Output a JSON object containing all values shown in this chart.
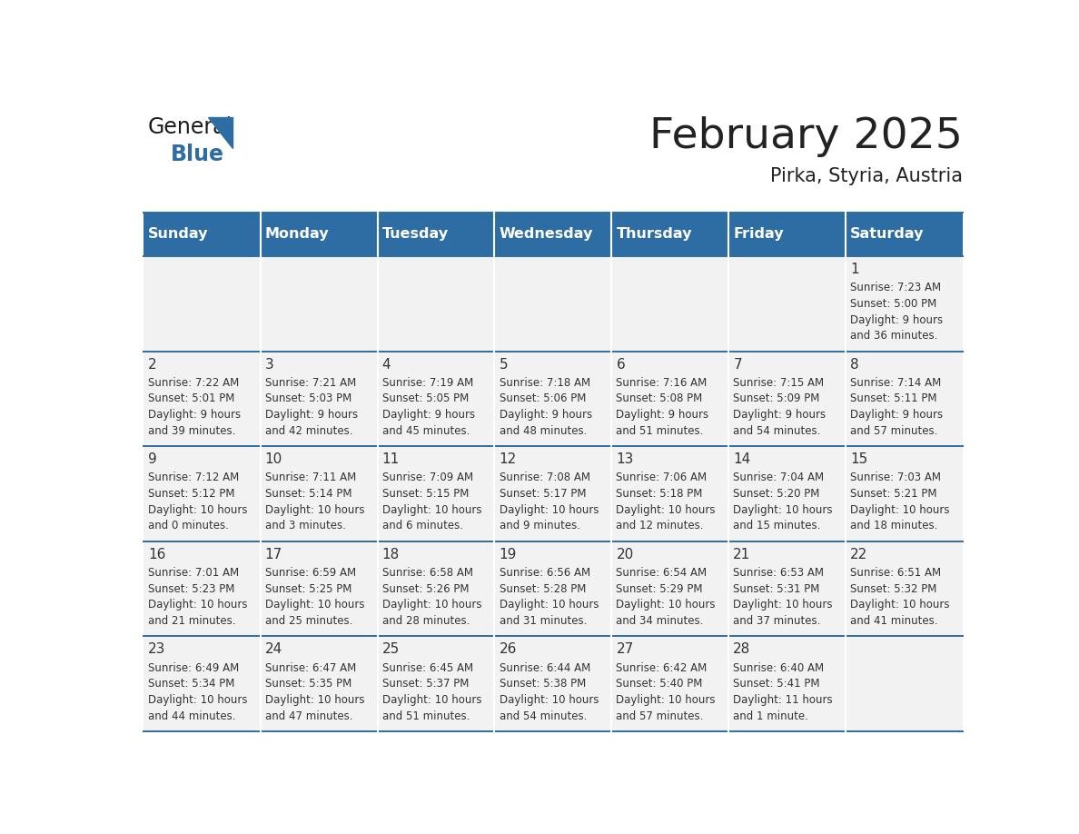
{
  "title": "February 2025",
  "subtitle": "Pirka, Styria, Austria",
  "days_of_week": [
    "Sunday",
    "Monday",
    "Tuesday",
    "Wednesday",
    "Thursday",
    "Friday",
    "Saturday"
  ],
  "header_bg": "#2E6DA4",
  "header_text": "#FFFFFF",
  "cell_bg_light": "#F2F2F2",
  "border_color": "#2E6DA4",
  "text_color": "#333333",
  "title_color": "#222222",
  "calendar_data": [
    [
      null,
      null,
      null,
      null,
      null,
      null,
      {
        "day": "1",
        "sunrise": "7:23 AM",
        "sunset": "5:00 PM",
        "daylight_line1": "Daylight: 9 hours",
        "daylight_line2": "and 36 minutes."
      }
    ],
    [
      {
        "day": "2",
        "sunrise": "7:22 AM",
        "sunset": "5:01 PM",
        "daylight_line1": "Daylight: 9 hours",
        "daylight_line2": "and 39 minutes."
      },
      {
        "day": "3",
        "sunrise": "7:21 AM",
        "sunset": "5:03 PM",
        "daylight_line1": "Daylight: 9 hours",
        "daylight_line2": "and 42 minutes."
      },
      {
        "day": "4",
        "sunrise": "7:19 AM",
        "sunset": "5:05 PM",
        "daylight_line1": "Daylight: 9 hours",
        "daylight_line2": "and 45 minutes."
      },
      {
        "day": "5",
        "sunrise": "7:18 AM",
        "sunset": "5:06 PM",
        "daylight_line1": "Daylight: 9 hours",
        "daylight_line2": "and 48 minutes."
      },
      {
        "day": "6",
        "sunrise": "7:16 AM",
        "sunset": "5:08 PM",
        "daylight_line1": "Daylight: 9 hours",
        "daylight_line2": "and 51 minutes."
      },
      {
        "day": "7",
        "sunrise": "7:15 AM",
        "sunset": "5:09 PM",
        "daylight_line1": "Daylight: 9 hours",
        "daylight_line2": "and 54 minutes."
      },
      {
        "day": "8",
        "sunrise": "7:14 AM",
        "sunset": "5:11 PM",
        "daylight_line1": "Daylight: 9 hours",
        "daylight_line2": "and 57 minutes."
      }
    ],
    [
      {
        "day": "9",
        "sunrise": "7:12 AM",
        "sunset": "5:12 PM",
        "daylight_line1": "Daylight: 10 hours",
        "daylight_line2": "and 0 minutes."
      },
      {
        "day": "10",
        "sunrise": "7:11 AM",
        "sunset": "5:14 PM",
        "daylight_line1": "Daylight: 10 hours",
        "daylight_line2": "and 3 minutes."
      },
      {
        "day": "11",
        "sunrise": "7:09 AM",
        "sunset": "5:15 PM",
        "daylight_line1": "Daylight: 10 hours",
        "daylight_line2": "and 6 minutes."
      },
      {
        "day": "12",
        "sunrise": "7:08 AM",
        "sunset": "5:17 PM",
        "daylight_line1": "Daylight: 10 hours",
        "daylight_line2": "and 9 minutes."
      },
      {
        "day": "13",
        "sunrise": "7:06 AM",
        "sunset": "5:18 PM",
        "daylight_line1": "Daylight: 10 hours",
        "daylight_line2": "and 12 minutes."
      },
      {
        "day": "14",
        "sunrise": "7:04 AM",
        "sunset": "5:20 PM",
        "daylight_line1": "Daylight: 10 hours",
        "daylight_line2": "and 15 minutes."
      },
      {
        "day": "15",
        "sunrise": "7:03 AM",
        "sunset": "5:21 PM",
        "daylight_line1": "Daylight: 10 hours",
        "daylight_line2": "and 18 minutes."
      }
    ],
    [
      {
        "day": "16",
        "sunrise": "7:01 AM",
        "sunset": "5:23 PM",
        "daylight_line1": "Daylight: 10 hours",
        "daylight_line2": "and 21 minutes."
      },
      {
        "day": "17",
        "sunrise": "6:59 AM",
        "sunset": "5:25 PM",
        "daylight_line1": "Daylight: 10 hours",
        "daylight_line2": "and 25 minutes."
      },
      {
        "day": "18",
        "sunrise": "6:58 AM",
        "sunset": "5:26 PM",
        "daylight_line1": "Daylight: 10 hours",
        "daylight_line2": "and 28 minutes."
      },
      {
        "day": "19",
        "sunrise": "6:56 AM",
        "sunset": "5:28 PM",
        "daylight_line1": "Daylight: 10 hours",
        "daylight_line2": "and 31 minutes."
      },
      {
        "day": "20",
        "sunrise": "6:54 AM",
        "sunset": "5:29 PM",
        "daylight_line1": "Daylight: 10 hours",
        "daylight_line2": "and 34 minutes."
      },
      {
        "day": "21",
        "sunrise": "6:53 AM",
        "sunset": "5:31 PM",
        "daylight_line1": "Daylight: 10 hours",
        "daylight_line2": "and 37 minutes."
      },
      {
        "day": "22",
        "sunrise": "6:51 AM",
        "sunset": "5:32 PM",
        "daylight_line1": "Daylight: 10 hours",
        "daylight_line2": "and 41 minutes."
      }
    ],
    [
      {
        "day": "23",
        "sunrise": "6:49 AM",
        "sunset": "5:34 PM",
        "daylight_line1": "Daylight: 10 hours",
        "daylight_line2": "and 44 minutes."
      },
      {
        "day": "24",
        "sunrise": "6:47 AM",
        "sunset": "5:35 PM",
        "daylight_line1": "Daylight: 10 hours",
        "daylight_line2": "and 47 minutes."
      },
      {
        "day": "25",
        "sunrise": "6:45 AM",
        "sunset": "5:37 PM",
        "daylight_line1": "Daylight: 10 hours",
        "daylight_line2": "and 51 minutes."
      },
      {
        "day": "26",
        "sunrise": "6:44 AM",
        "sunset": "5:38 PM",
        "daylight_line1": "Daylight: 10 hours",
        "daylight_line2": "and 54 minutes."
      },
      {
        "day": "27",
        "sunrise": "6:42 AM",
        "sunset": "5:40 PM",
        "daylight_line1": "Daylight: 10 hours",
        "daylight_line2": "and 57 minutes."
      },
      {
        "day": "28",
        "sunrise": "6:40 AM",
        "sunset": "5:41 PM",
        "daylight_line1": "Daylight: 11 hours",
        "daylight_line2": "and 1 minute."
      },
      null
    ]
  ]
}
